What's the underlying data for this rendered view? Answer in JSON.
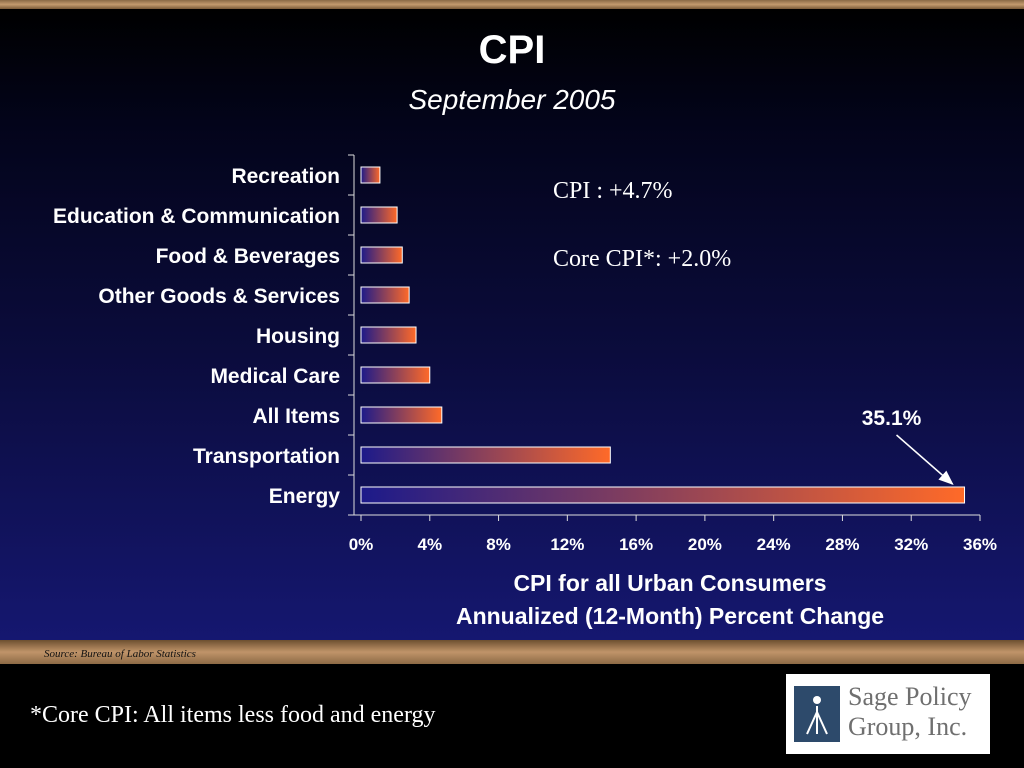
{
  "slide": {
    "title": "CPI",
    "subtitle": "September 2005",
    "stats": [
      "CPI :  +4.7%",
      "Core CPI*:  +2.0%"
    ],
    "source": "Source:  Bureau of Labor Statistics",
    "footnote": "*Core CPI:  All items less food and energy",
    "logo": {
      "line1": "Sage Policy",
      "line2": "Group, Inc."
    },
    "colors": {
      "bar_start": "#1c1a8a",
      "bar_end": "#ff6a28",
      "accent": "#c39a6e"
    }
  },
  "chart_data": {
    "type": "bar",
    "orientation": "horizontal",
    "categories": [
      "Recreation",
      "Education & Communication",
      "Food & Beverages",
      "Other Goods & Services",
      "Housing",
      "Medical Care",
      "All Items",
      "Transportation",
      "Energy"
    ],
    "values": [
      1.1,
      2.1,
      2.4,
      2.8,
      3.2,
      4.0,
      4.7,
      14.5,
      35.1
    ],
    "xlim": [
      0,
      36
    ],
    "x_ticks": [
      "0%",
      "4%",
      "8%",
      "12%",
      "16%",
      "20%",
      "24%",
      "28%",
      "32%",
      "36%"
    ],
    "xlabel_line1": "CPI for all Urban Consumers",
    "xlabel_line2": "Annualized (12-Month) Percent Change",
    "annotation": {
      "text": "35.1%",
      "category": "Energy"
    }
  }
}
